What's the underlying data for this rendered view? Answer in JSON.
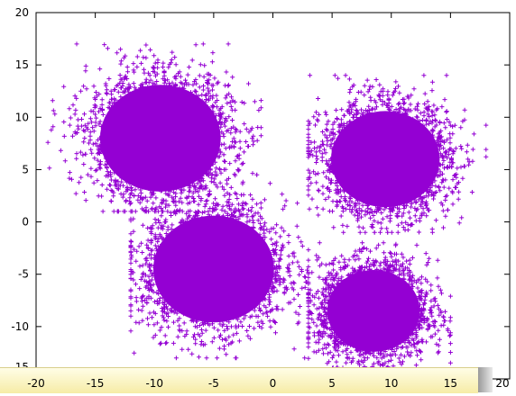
{
  "chart_data": {
    "type": "scatter",
    "marker": "+",
    "color": "#9400d3",
    "grid": false,
    "legend": "none",
    "xlim": [
      -20,
      20
    ],
    "ylim": [
      -15,
      20
    ],
    "xticks": [
      "-20",
      "-15",
      "-10",
      "-5",
      "0",
      "5",
      "10",
      "15",
      "20"
    ],
    "yticks": [
      "-15",
      "-10",
      "-5",
      "0",
      "5",
      "10",
      "15",
      "20"
    ],
    "clusters": [
      {
        "center": [
          -9.5,
          8.0
        ],
        "spread": 3.0,
        "approx_extent": {
          "x": [
            -19,
            -1
          ],
          "y": [
            1,
            17
          ]
        }
      },
      {
        "center": [
          -5.0,
          -4.5
        ],
        "spread": 3.0,
        "approx_extent": {
          "x": [
            -12,
            3
          ],
          "y": [
            -13,
            4
          ]
        }
      },
      {
        "center": [
          9.5,
          6.0
        ],
        "spread": 2.7,
        "approx_extent": {
          "x": [
            3,
            18
          ],
          "y": [
            -1,
            14
          ]
        }
      },
      {
        "center": [
          8.5,
          -8.5
        ],
        "spread": 2.3,
        "approx_extent": {
          "x": [
            3,
            15
          ],
          "y": [
            -15,
            -2
          ]
        }
      }
    ],
    "title": "",
    "xlabel": "",
    "ylabel": ""
  }
}
